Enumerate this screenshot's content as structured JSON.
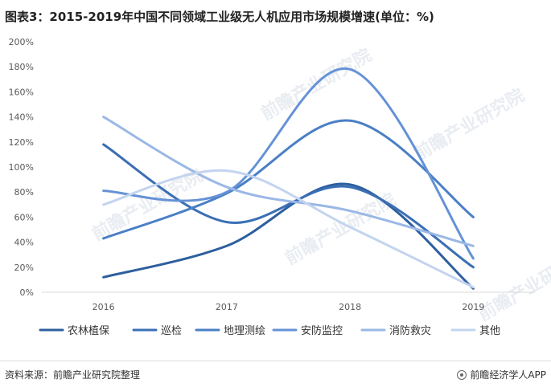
{
  "title": "图表3：2015-2019年中国不同领域工业级无人机应用市场规模增速(单位：%)",
  "source": "资料来源：前瞻产业研究院整理",
  "brand": "前瞻经济学人APP",
  "brand_icon": "qianzhan-logo-icon",
  "watermark": "前瞻产业研究院",
  "chart_data": {
    "type": "line",
    "smooth": true,
    "title": "图表3：2015-2019年中国不同领域工业级无人机应用市场规模增速(单位：%)",
    "xlabel": "",
    "ylabel": "",
    "categories": [
      "2016",
      "2017",
      "2018",
      "2019"
    ],
    "ylim": [
      0,
      200
    ],
    "yticks": [
      0,
      20,
      40,
      60,
      80,
      100,
      120,
      140,
      160,
      180,
      200
    ],
    "ytick_labels": [
      "0%",
      "20%",
      "40%",
      "60%",
      "80%",
      "100%",
      "120%",
      "140%",
      "160%",
      "180%",
      "200%"
    ],
    "grid": false,
    "legend": "bottom",
    "series": [
      {
        "name": "农林植保",
        "values": [
          12,
          37,
          86,
          3
        ],
        "color": "#2e5f9e"
      },
      {
        "name": "巡检",
        "values": [
          118,
          56,
          84,
          20
        ],
        "color": "#3a6fb5"
      },
      {
        "name": "地理测绘",
        "values": [
          43,
          79,
          137,
          60
        ],
        "color": "#4a7fc6"
      },
      {
        "name": "安防监控",
        "values": [
          81,
          80,
          178,
          27
        ],
        "color": "#6592d6"
      },
      {
        "name": "消防救灾",
        "values": [
          140,
          84,
          65,
          37
        ],
        "color": "#9ab8e6"
      },
      {
        "name": "其他",
        "values": [
          70,
          97,
          52,
          4
        ],
        "color": "#c3d4ef"
      }
    ]
  }
}
